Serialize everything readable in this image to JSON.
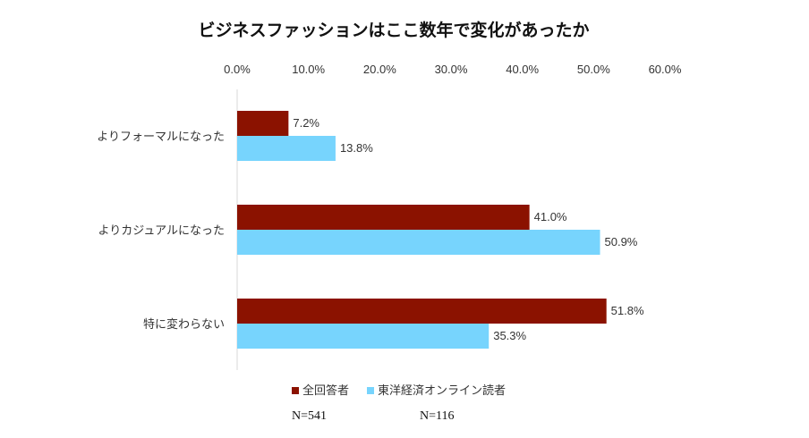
{
  "chart_data": {
    "type": "bar",
    "orientation": "horizontal",
    "title": "ビジネスファッションはここ数年で変化があったか",
    "categories": [
      "よりフォーマルになった",
      "よりカジュアルになった",
      "特に変わらない"
    ],
    "series": [
      {
        "name": "全回答者",
        "color": "#8B1200",
        "values": [
          7.2,
          41.0,
          51.8
        ]
      },
      {
        "name": "東洋経済オンライン読者",
        "color": "#77D4FD",
        "values": [
          13.8,
          50.9,
          35.3
        ]
      }
    ],
    "xlim": [
      0,
      60
    ],
    "xticks": [
      "0.0%",
      "10.0%",
      "20.0%",
      "30.0%",
      "40.0%",
      "50.0%",
      "60.0%"
    ],
    "value_suffix": "%",
    "xaxis_position": "top",
    "grid": false,
    "legend_position": "bottom"
  },
  "notes": {
    "n_all": "N=541",
    "n_readers": "N=116"
  }
}
